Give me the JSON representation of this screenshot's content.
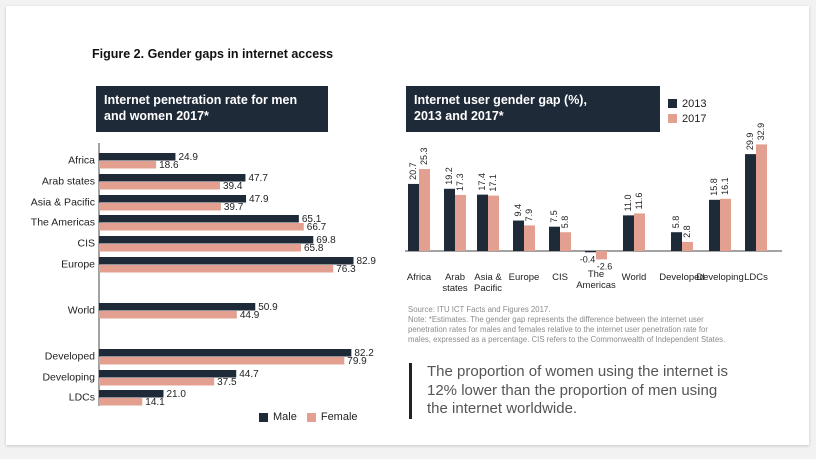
{
  "figure_title": "Figure 2. Gender gaps in internet access",
  "colors": {
    "male": "#1f2a38",
    "female": "#e3a090",
    "header_bg": "#1f2a38"
  },
  "chart_data": [
    {
      "type": "bar",
      "orientation": "horizontal",
      "title_lines": [
        "Internet penetration rate for men",
        "and women 2017*"
      ],
      "categories": [
        "Africa",
        "Arab states",
        "Asia & Pacific",
        "The Americas",
        "CIS",
        "Europe",
        "World",
        "Developed",
        "Developing",
        "LDCs"
      ],
      "series": [
        {
          "name": "Male",
          "values": [
            24.9,
            47.7,
            47.9,
            65.1,
            69.8,
            82.9,
            50.9,
            82.2,
            44.7,
            21.0
          ],
          "labels": [
            "24.9",
            "47.7",
            "47.9",
            "65.1",
            "69.8",
            "82.9",
            "50.9",
            "82.2",
            "44.7",
            "21.0"
          ]
        },
        {
          "name": "Female",
          "values": [
            18.6,
            39.4,
            39.7,
            66.7,
            65.8,
            76.3,
            44.9,
            79.9,
            37.5,
            14.1
          ],
          "labels": [
            "18.6",
            "39.4",
            "39.7",
            "66.7",
            "65.8",
            "76.3",
            "44.9",
            "79.9",
            "37.5",
            "14.1"
          ]
        }
      ],
      "legend_position": "bottom"
    },
    {
      "type": "bar",
      "orientation": "vertical",
      "title_lines": [
        "Internet user gender gap (%),",
        "2013 and 2017*"
      ],
      "categories": [
        [
          "Africa"
        ],
        [
          "Arab",
          "states"
        ],
        [
          "Asia &",
          "Pacific"
        ],
        [
          "Europe"
        ],
        [
          "CIS"
        ],
        [
          "The",
          "Americas"
        ],
        [
          "World"
        ],
        [
          "Developed"
        ],
        [
          "Developing"
        ],
        [
          "LDCs"
        ]
      ],
      "series": [
        {
          "name": "2013",
          "values": [
            20.7,
            19.2,
            17.4,
            9.4,
            7.5,
            -0.4,
            11.0,
            5.8,
            15.8,
            29.9
          ],
          "labels": [
            "20.7",
            "19.2",
            "17.4",
            "9.4",
            "7.5",
            "-0.4",
            "11.0",
            "5.8",
            "15.8",
            "29.9"
          ]
        },
        {
          "name": "2017",
          "values": [
            25.3,
            17.3,
            17.1,
            7.9,
            5.8,
            -2.6,
            11.6,
            2.8,
            16.1,
            32.9
          ],
          "labels": [
            "25.3",
            "17.3",
            "17.1",
            "7.9",
            "5.8",
            "-2.6",
            "11.6",
            "2.8",
            "16.1",
            "32.9"
          ]
        }
      ],
      "legend_position": "top-right"
    }
  ],
  "source_lines": [
    "Source: ITU ICT Facts and Figures 2017.",
    "Note: *Estimates. The gender gap represents the difference between the internet user",
    "penetration rates for males and females relative to the internet user penetration rate for",
    "males, expressed as a percentage. CIS refers to the Commonwealth of Independent States."
  ],
  "quote_lines": [
    "The proportion of women using the internet is",
    "12% lower than the proportion of men using",
    "the internet worldwide."
  ]
}
